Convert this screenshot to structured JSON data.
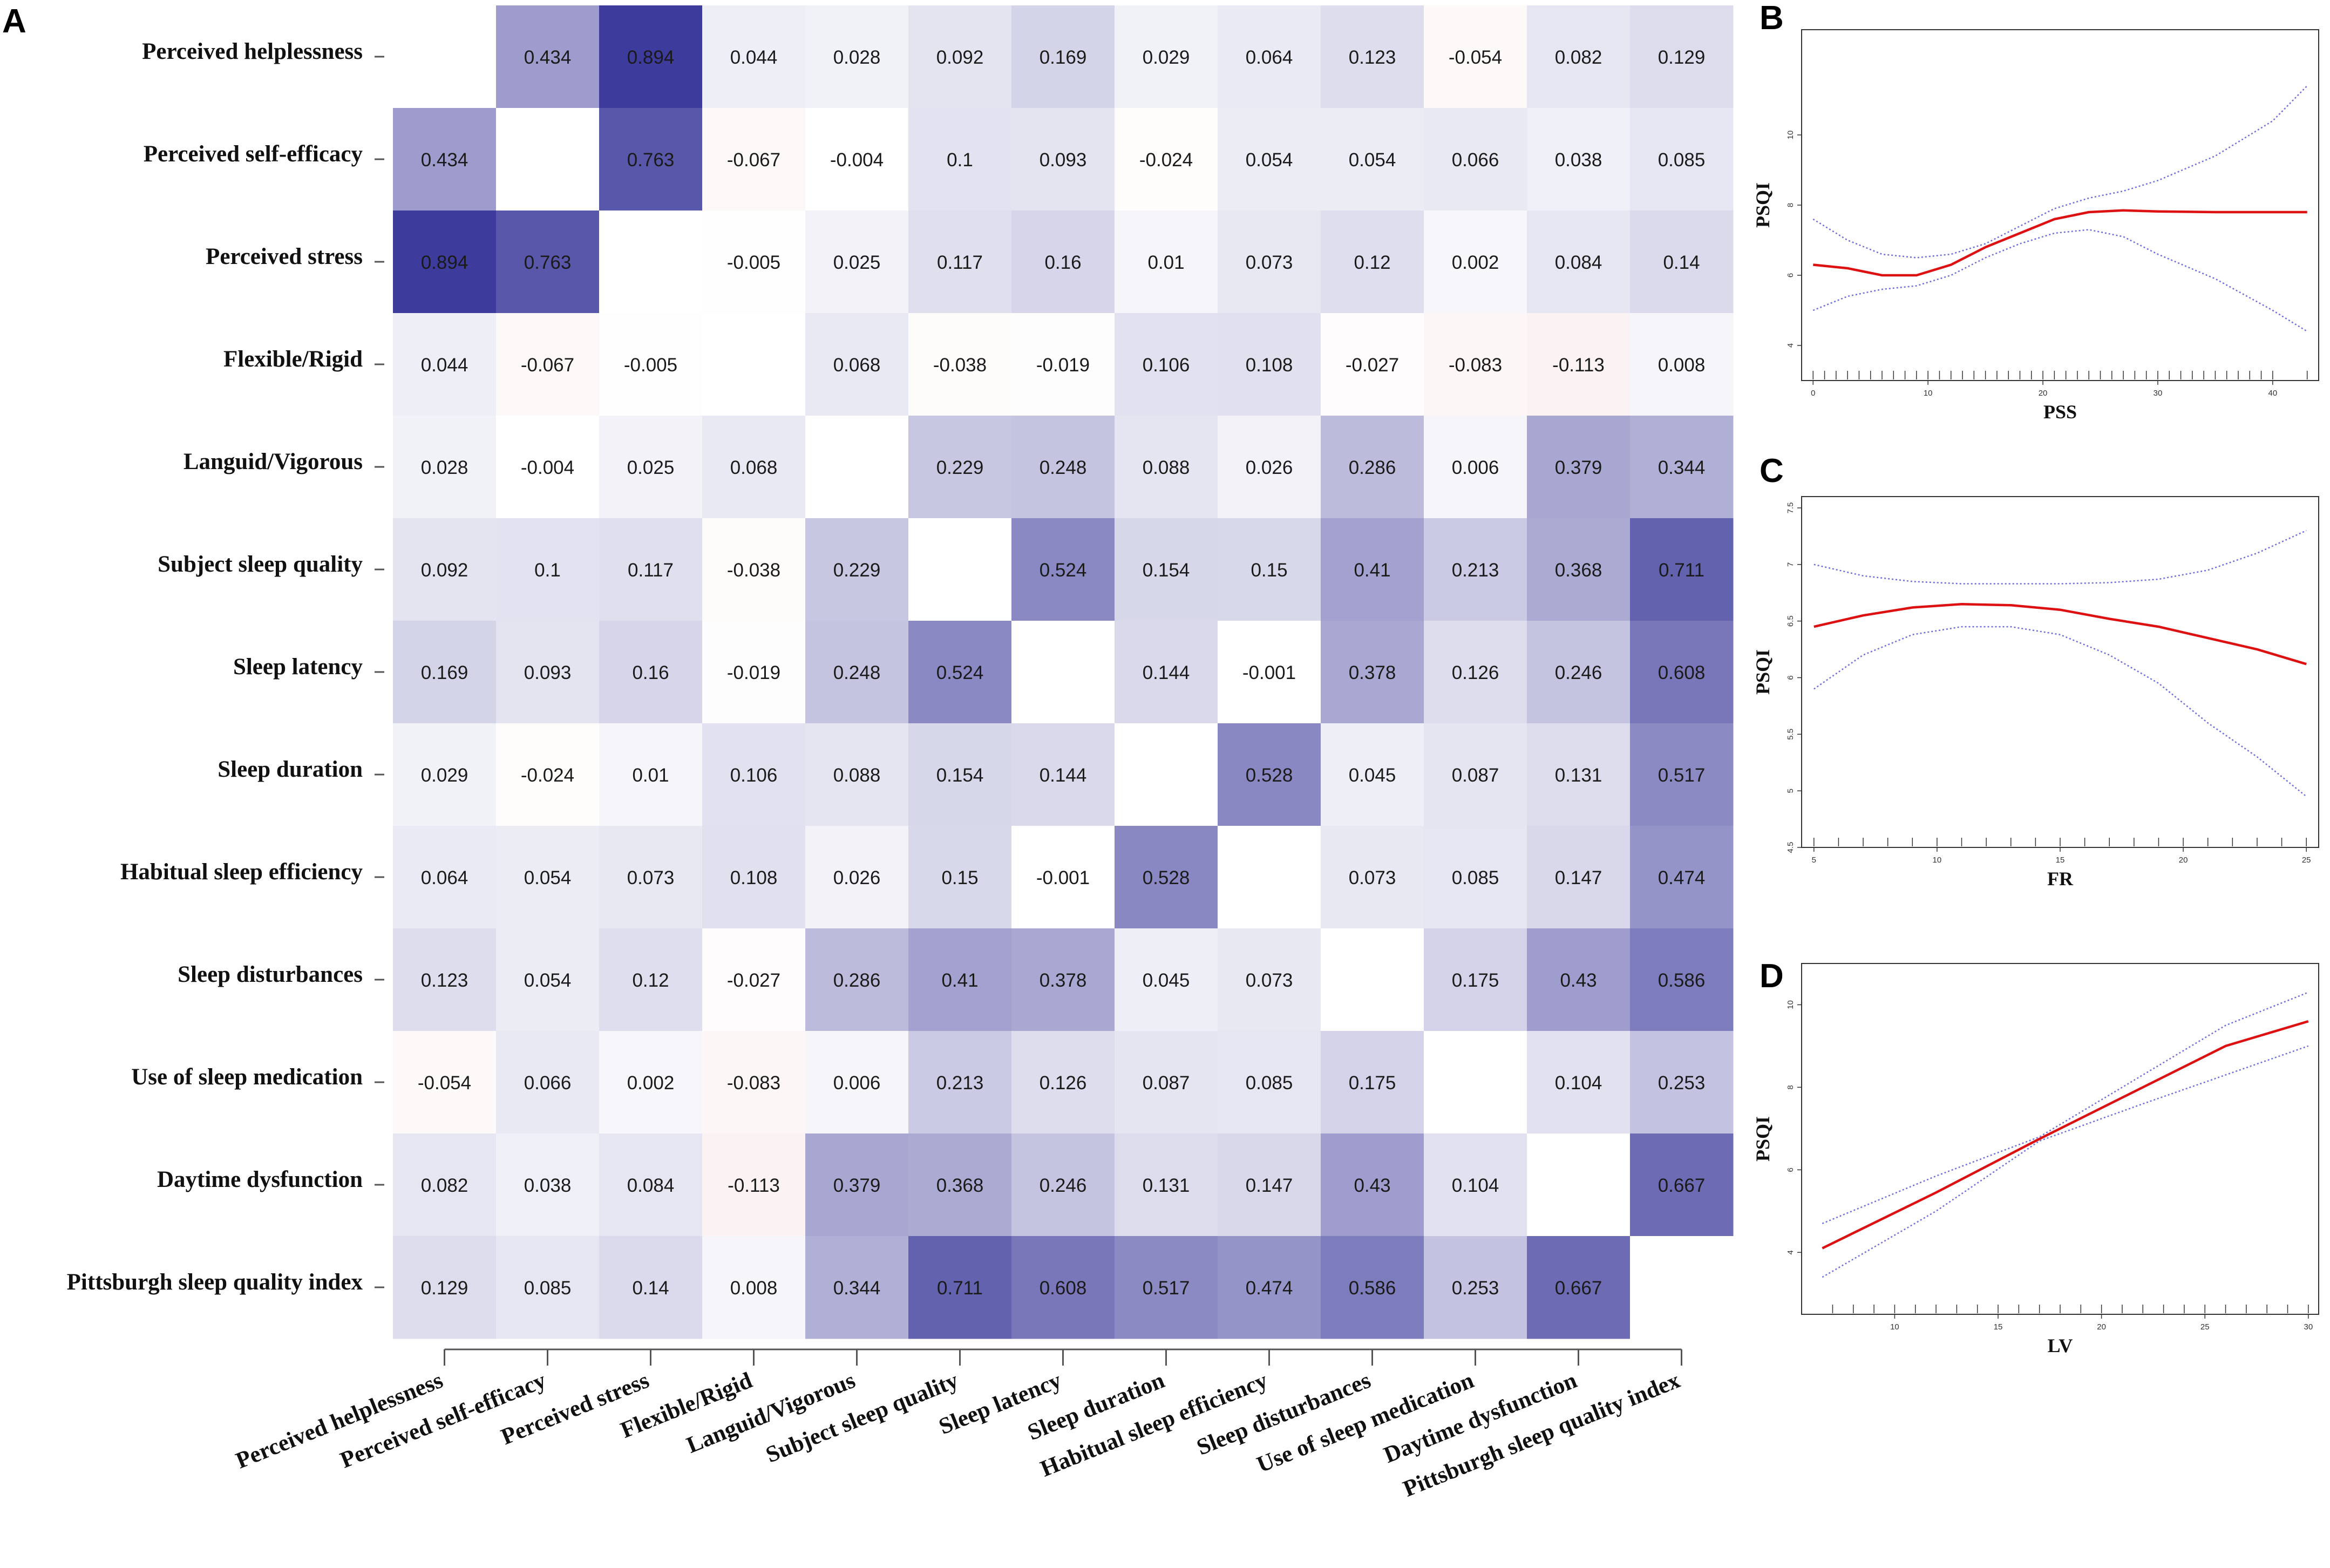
{
  "panel_labels": [
    "A",
    "B",
    "C",
    "D"
  ],
  "colors": {
    "positive_max": "#3c3a9a",
    "negative_max": "#c8584c",
    "fit_line": "#dd1111",
    "ci_line": "#6e6edd",
    "frame": "#333333"
  },
  "chart_data": [
    {
      "type": "heatmap",
      "title": "",
      "variables": [
        "Perceived helplessness",
        "Perceived self-efficacy",
        "Perceived stress",
        "Flexible/Rigid",
        "Languid/Vigorous",
        "Subject sleep quality",
        "Sleep latency",
        "Sleep duration",
        "Habitual sleep efficiency",
        "Sleep disturbances",
        "Use of sleep medication",
        "Daytime dysfunction",
        "Pittsburgh sleep quality index"
      ],
      "matrix": [
        [
          null,
          "0.434",
          "0.894",
          "0.044",
          "0.028",
          "0.092",
          "0.169",
          "0.029",
          "0.064",
          "0.123",
          "-0.054",
          "0.082",
          "0.129"
        ],
        [
          "0.434",
          null,
          "0.763",
          "-0.067",
          "-0.004",
          "0.1",
          "0.093",
          "-0.024",
          "0.054",
          "0.054",
          "0.066",
          "0.038",
          "0.085"
        ],
        [
          "0.894",
          "0.763",
          null,
          "-0.005",
          "0.025",
          "0.117",
          "0.16",
          "0.01",
          "0.073",
          "0.12",
          "0.002",
          "0.084",
          "0.14"
        ],
        [
          "0.044",
          "-0.067",
          "-0.005",
          null,
          "0.068",
          "-0.038",
          "-0.019",
          "0.106",
          "0.108",
          "-0.027",
          "-0.083",
          "-0.113",
          "0.008"
        ],
        [
          "0.028",
          "-0.004",
          "0.025",
          "0.068",
          null,
          "0.229",
          "0.248",
          "0.088",
          "0.026",
          "0.286",
          "0.006",
          "0.379",
          "0.344"
        ],
        [
          "0.092",
          "0.1",
          "0.117",
          "-0.038",
          "0.229",
          null,
          "0.524",
          "0.154",
          "0.15",
          "0.41",
          "0.213",
          "0.368",
          "0.711"
        ],
        [
          "0.169",
          "0.093",
          "0.16",
          "-0.019",
          "0.248",
          "0.524",
          null,
          "0.144",
          "-0.001",
          "0.378",
          "0.126",
          "0.246",
          "0.608"
        ],
        [
          "0.029",
          "-0.024",
          "0.01",
          "0.106",
          "0.088",
          "0.154",
          "0.144",
          null,
          "0.528",
          "0.045",
          "0.087",
          "0.131",
          "0.517"
        ],
        [
          "0.064",
          "0.054",
          "0.073",
          "0.108",
          "0.026",
          "0.15",
          "-0.001",
          "0.528",
          null,
          "0.073",
          "0.085",
          "0.147",
          "0.474"
        ],
        [
          "0.123",
          "0.054",
          "0.12",
          "-0.027",
          "0.286",
          "0.41",
          "0.378",
          "0.045",
          "0.073",
          null,
          "0.175",
          "0.43",
          "0.586"
        ],
        [
          "-0.054",
          "0.066",
          "0.002",
          "-0.083",
          "0.006",
          "0.213",
          "0.126",
          "0.087",
          "0.085",
          "0.175",
          null,
          "0.104",
          "0.253"
        ],
        [
          "0.082",
          "0.038",
          "0.084",
          "-0.113",
          "0.379",
          "0.368",
          "0.246",
          "0.131",
          "0.147",
          "0.43",
          "0.104",
          null,
          "0.667"
        ],
        [
          "0.129",
          "0.085",
          "0.14",
          "0.008",
          "0.344",
          "0.711",
          "0.608",
          "0.517",
          "0.474",
          "0.586",
          "0.253",
          "0.667",
          null
        ]
      ]
    },
    {
      "type": "line",
      "panel": "B",
      "xlabel": "PSS",
      "ylabel": "PSQI",
      "xlim": [
        -1,
        44
      ],
      "ylim": [
        3,
        13
      ],
      "xticks": [
        0,
        10,
        20,
        30,
        40
      ],
      "yticks": [
        4,
        6,
        8,
        10
      ],
      "rug": [
        0,
        1,
        2,
        3,
        4,
        5,
        6,
        7,
        8,
        9,
        10,
        11,
        12,
        13,
        14,
        15,
        16,
        17,
        18,
        19,
        20,
        21,
        22,
        23,
        24,
        25,
        26,
        27,
        28,
        29,
        30,
        31,
        32,
        33,
        34,
        35,
        36,
        37,
        38,
        39,
        40,
        43
      ],
      "series": [
        {
          "name": "fit",
          "x": [
            0,
            3,
            6,
            9,
            12,
            15,
            18,
            21,
            24,
            27,
            30,
            35,
            40,
            43
          ],
          "y": [
            6.3,
            6.2,
            6.0,
            6.0,
            6.3,
            6.8,
            7.2,
            7.6,
            7.8,
            7.85,
            7.82,
            7.8,
            7.8,
            7.8
          ]
        },
        {
          "name": "upper",
          "x": [
            0,
            3,
            6,
            9,
            12,
            15,
            18,
            21,
            24,
            27,
            30,
            35,
            40,
            43
          ],
          "y": [
            7.6,
            7.0,
            6.6,
            6.5,
            6.6,
            6.9,
            7.4,
            7.9,
            8.2,
            8.4,
            8.7,
            9.4,
            10.4,
            11.4
          ]
        },
        {
          "name": "lower",
          "x": [
            0,
            3,
            6,
            9,
            12,
            15,
            18,
            21,
            24,
            27,
            30,
            35,
            40,
            43
          ],
          "y": [
            5.0,
            5.4,
            5.6,
            5.7,
            6.0,
            6.5,
            6.9,
            7.2,
            7.3,
            7.1,
            6.6,
            5.9,
            5.0,
            4.4
          ]
        }
      ]
    },
    {
      "type": "line",
      "panel": "C",
      "xlabel": "FR",
      "ylabel": "PSQI",
      "xlim": [
        4.5,
        25.5
      ],
      "ylim": [
        4.5,
        7.6
      ],
      "xticks": [
        5,
        10,
        15,
        20,
        25
      ],
      "yticks": [
        4.5,
        5.0,
        5.5,
        6.0,
        6.5,
        7.0,
        7.5
      ],
      "rug": [
        5,
        6,
        7,
        8,
        9,
        10,
        11,
        12,
        13,
        14,
        15,
        16,
        17,
        18,
        19,
        20,
        21,
        22,
        23,
        24,
        25
      ],
      "series": [
        {
          "name": "fit",
          "x": [
            5,
            7,
            9,
            11,
            13,
            15,
            17,
            19,
            21,
            23,
            25
          ],
          "y": [
            6.45,
            6.55,
            6.62,
            6.65,
            6.64,
            6.6,
            6.52,
            6.45,
            6.35,
            6.25,
            6.12
          ]
        },
        {
          "name": "upper",
          "x": [
            5,
            7,
            9,
            11,
            13,
            15,
            17,
            19,
            21,
            23,
            25
          ],
          "y": [
            7.0,
            6.9,
            6.85,
            6.83,
            6.83,
            6.83,
            6.84,
            6.87,
            6.95,
            7.1,
            7.3
          ]
        },
        {
          "name": "lower",
          "x": [
            5,
            7,
            9,
            11,
            13,
            15,
            17,
            19,
            21,
            23,
            25
          ],
          "y": [
            5.9,
            6.2,
            6.38,
            6.45,
            6.45,
            6.38,
            6.2,
            5.95,
            5.6,
            5.3,
            4.95
          ]
        }
      ]
    },
    {
      "type": "line",
      "panel": "D",
      "xlabel": "LV",
      "ylabel": "PSQI",
      "xlim": [
        5.5,
        30.5
      ],
      "ylim": [
        2.5,
        11
      ],
      "xticks": [
        10,
        15,
        20,
        25,
        30
      ],
      "yticks": [
        4,
        6,
        8,
        10
      ],
      "rug": [
        7,
        8,
        9,
        10,
        11,
        12,
        13,
        14,
        15,
        16,
        17,
        18,
        19,
        20,
        21,
        22,
        23,
        24,
        25,
        26,
        27,
        28,
        29,
        30
      ],
      "series": [
        {
          "name": "fit",
          "x": [
            6.5,
            12,
            17,
            22,
            26,
            30
          ],
          "y": [
            4.1,
            5.45,
            6.75,
            8.0,
            9.0,
            9.6
          ]
        },
        {
          "name": "upper",
          "x": [
            6.5,
            12,
            17,
            22,
            26,
            30
          ],
          "y": [
            4.7,
            5.85,
            6.8,
            8.3,
            9.5,
            10.3
          ]
        },
        {
          "name": "lower",
          "x": [
            6.5,
            12,
            17,
            22,
            26,
            30
          ],
          "y": [
            3.4,
            5.0,
            6.7,
            7.6,
            8.3,
            9.0
          ]
        }
      ]
    }
  ]
}
